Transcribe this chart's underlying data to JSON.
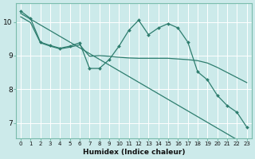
{
  "xlabel": "Humidex (Indice chaleur)",
  "bg_color": "#cceaea",
  "grid_color": "#ffffff",
  "line_color": "#2e7d6e",
  "xlim": [
    -0.5,
    23.5
  ],
  "ylim": [
    6.55,
    10.55
  ],
  "xticks": [
    0,
    1,
    2,
    3,
    4,
    5,
    6,
    7,
    8,
    9,
    10,
    11,
    12,
    13,
    14,
    15,
    16,
    17,
    18,
    19,
    20,
    21,
    22,
    23
  ],
  "yticks": [
    7,
    8,
    9,
    10
  ],
  "line1_y": [
    10.32,
    10.1,
    9.4,
    9.3,
    9.22,
    9.28,
    9.38,
    8.62,
    8.62,
    8.88,
    9.28,
    9.75,
    10.05,
    9.62,
    9.82,
    9.95,
    9.82,
    9.4,
    8.52,
    8.28,
    7.82,
    7.52,
    7.32,
    6.88
  ],
  "line2_y": [
    10.25,
    10.08,
    9.91,
    9.74,
    9.57,
    9.4,
    9.23,
    9.06,
    8.89,
    8.72,
    8.55,
    8.38,
    8.21,
    8.04,
    7.87,
    7.7,
    7.53,
    7.36,
    7.19,
    7.02,
    6.85,
    6.68,
    6.51,
    6.34
  ],
  "line3_y": [
    10.15,
    9.98,
    9.38,
    9.28,
    9.2,
    9.25,
    9.32,
    8.98,
    9.0,
    8.98,
    8.95,
    8.93,
    8.92,
    8.92,
    8.92,
    8.92,
    8.9,
    8.88,
    8.85,
    8.78,
    8.65,
    8.5,
    8.35,
    8.2
  ]
}
